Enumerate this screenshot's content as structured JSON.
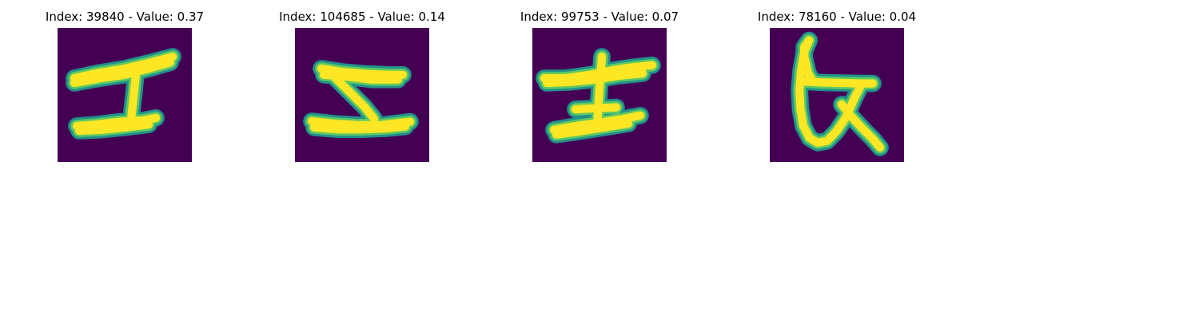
{
  "colors": {
    "background": "#440154",
    "stroke_edge": "#21918c",
    "stroke_mid": "#5ec962",
    "stroke_core": "#fde725"
  },
  "panels": [
    {
      "title": "Index: 39840 - Value: 0.37"
    },
    {
      "title": "Index: 104685 - Value: 0.14"
    },
    {
      "title": "Index: 99753 - Value: 0.07"
    },
    {
      "title": "Index: 78160 - Value: 0.04"
    }
  ]
}
